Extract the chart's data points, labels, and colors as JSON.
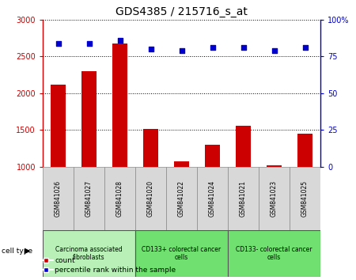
{
  "title": "GDS4385 / 215716_s_at",
  "samples": [
    "GSM841026",
    "GSM841027",
    "GSM841028",
    "GSM841020",
    "GSM841022",
    "GSM841024",
    "GSM841021",
    "GSM841023",
    "GSM841025"
  ],
  "counts": [
    2120,
    2300,
    2680,
    1510,
    1075,
    1305,
    1560,
    1020,
    1450
  ],
  "percentile_ranks": [
    84,
    84,
    86,
    80,
    79,
    81,
    81,
    79,
    81
  ],
  "ylim_left": [
    1000,
    3000
  ],
  "ylim_right": [
    0,
    100
  ],
  "yticks_left": [
    1000,
    1500,
    2000,
    2500,
    3000
  ],
  "yticks_right": [
    0,
    25,
    50,
    75,
    100
  ],
  "ytick_labels_right": [
    "0",
    "25",
    "50",
    "75",
    "100%"
  ],
  "bar_color": "#cc0000",
  "scatter_color": "#0000cc",
  "group_info": [
    {
      "label": "Carcinoma associated\nfibroblasts",
      "indices": [
        0,
        1,
        2
      ],
      "color": "#b8f0b8"
    },
    {
      "label": "CD133+ colorectal cancer\ncells",
      "indices": [
        3,
        4,
        5
      ],
      "color": "#70e070"
    },
    {
      "label": "CD133- colorectal cancer\ncells",
      "indices": [
        6,
        7,
        8
      ],
      "color": "#70e070"
    }
  ],
  "legend_labels": [
    "count",
    "percentile rank within the sample"
  ],
  "cell_type_label": "cell type",
  "bar_width": 0.5,
  "sample_box_color": "#d8d8d8",
  "sample_box_edge": "#888888"
}
